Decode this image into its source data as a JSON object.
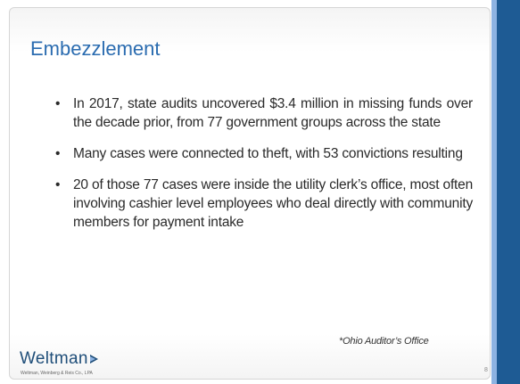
{
  "header": {
    "title": "Embezzlement"
  },
  "bullets": [
    "In 2017, state audits uncovered $3.4 million in missing funds over the decade prior, from 77 government groups across the state",
    "Many cases were connected to theft, with 53 convictions resulting",
    "20 of those 77 cases were inside the utility clerk’s office, most often involving cashier level employees who deal directly with community members for payment intake"
  ],
  "source": "*Ohio Auditor’s Office",
  "footer": {
    "logo": "Weltman",
    "logo_subtitle": "Weltman, Weinberg & Reis Co., LPA",
    "page_number": "8"
  }
}
